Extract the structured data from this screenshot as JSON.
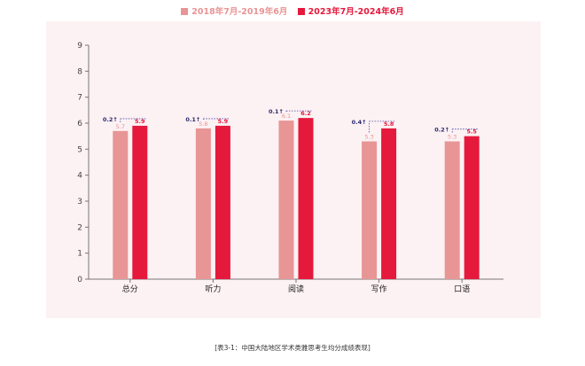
{
  "chart_data": {
    "type": "bar",
    "categories": [
      "总分",
      "听力",
      "阅读",
      "写作",
      "口语"
    ],
    "series": [
      {
        "name": "2018年7月-2019年6月",
        "values": [
          5.7,
          5.8,
          6.1,
          5.3,
          5.3
        ],
        "color": "#e89595"
      },
      {
        "name": "2023年7月-2024年6月",
        "values": [
          5.9,
          5.9,
          6.2,
          5.8,
          5.5
        ],
        "color": "#e5193c"
      }
    ],
    "deltas": [
      "0.2↑",
      "0.1↑",
      "0.1↑",
      "0.4↑",
      "0.2↑"
    ],
    "yticks": [
      "0",
      "1",
      "2",
      "3",
      "4",
      "5",
      "6",
      "7",
      "8",
      "9"
    ],
    "ylim": [
      0,
      9
    ],
    "legend_position": "top-center",
    "title": "",
    "xlabel": "",
    "ylabel": "",
    "grid": false
  },
  "caption": "[表3-1：中国大陆地区学术类雅思考生均分成绩表现]",
  "colors": {
    "panel_bg": "#fcf1f3",
    "delta_text": "#2b2a6e",
    "delta_line": "#4a49a8",
    "axis": "#777777"
  }
}
